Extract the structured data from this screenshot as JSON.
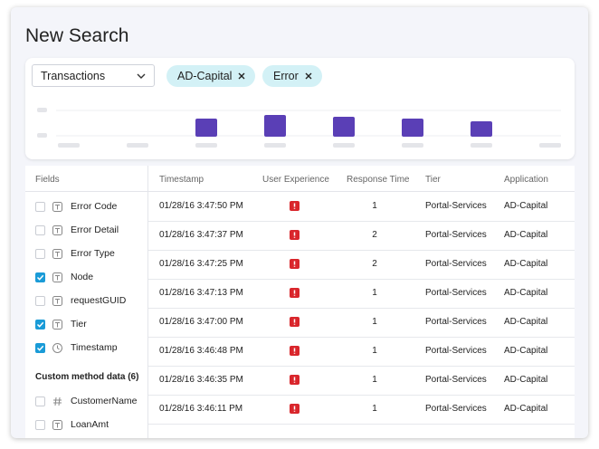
{
  "header": {
    "title": "New Search"
  },
  "filters": {
    "dropdown": "Transactions",
    "chips": [
      "AD-Capital",
      "Error"
    ]
  },
  "fields": {
    "title": "Fields",
    "items": [
      {
        "label": "Error Code",
        "checked": false,
        "icon": "text"
      },
      {
        "label": "Error Detail",
        "checked": false,
        "icon": "text"
      },
      {
        "label": "Error Type",
        "checked": false,
        "icon": "text"
      },
      {
        "label": "Node",
        "checked": true,
        "icon": "text"
      },
      {
        "label": "requestGUID",
        "checked": false,
        "icon": "text"
      },
      {
        "label": "Tier",
        "checked": true,
        "icon": "text"
      },
      {
        "label": "Timestamp",
        "checked": true,
        "icon": "clock"
      }
    ],
    "section": "Custom method data (6)",
    "custom_items": [
      {
        "label": "CustomerName",
        "checked": false,
        "icon": "number"
      },
      {
        "label": "LoanAmt",
        "checked": false,
        "icon": "text"
      }
    ]
  },
  "table": {
    "columns": [
      "Timestamp",
      "User Experience",
      "Response Time",
      "Tier",
      "Application"
    ],
    "rows": [
      [
        "01/28/16 3:47:50 PM",
        "error",
        1,
        "Portal-Services",
        "AD-Capital"
      ],
      [
        "01/28/16 3:47:37 PM",
        "error",
        2,
        "Portal-Services",
        "AD-Capital"
      ],
      [
        "01/28/16 3:47:25 PM",
        "error",
        2,
        "Portal-Services",
        "AD-Capital"
      ],
      [
        "01/28/16 3:47:13 PM",
        "error",
        1,
        "Portal-Services",
        "AD-Capital"
      ],
      [
        "01/28/16 3:47:00 PM",
        "error",
        1,
        "Portal-Services",
        "AD-Capital"
      ],
      [
        "01/28/16 3:46:48 PM",
        "error",
        1,
        "Portal-Services",
        "AD-Capital"
      ],
      [
        "01/28/16 3:46:35 PM",
        "error",
        1,
        "Portal-Services",
        "AD-Capital"
      ],
      [
        "01/28/16 3:46:11 PM",
        "error",
        1,
        "Portal-Services",
        "AD-Capital"
      ]
    ]
  }
}
